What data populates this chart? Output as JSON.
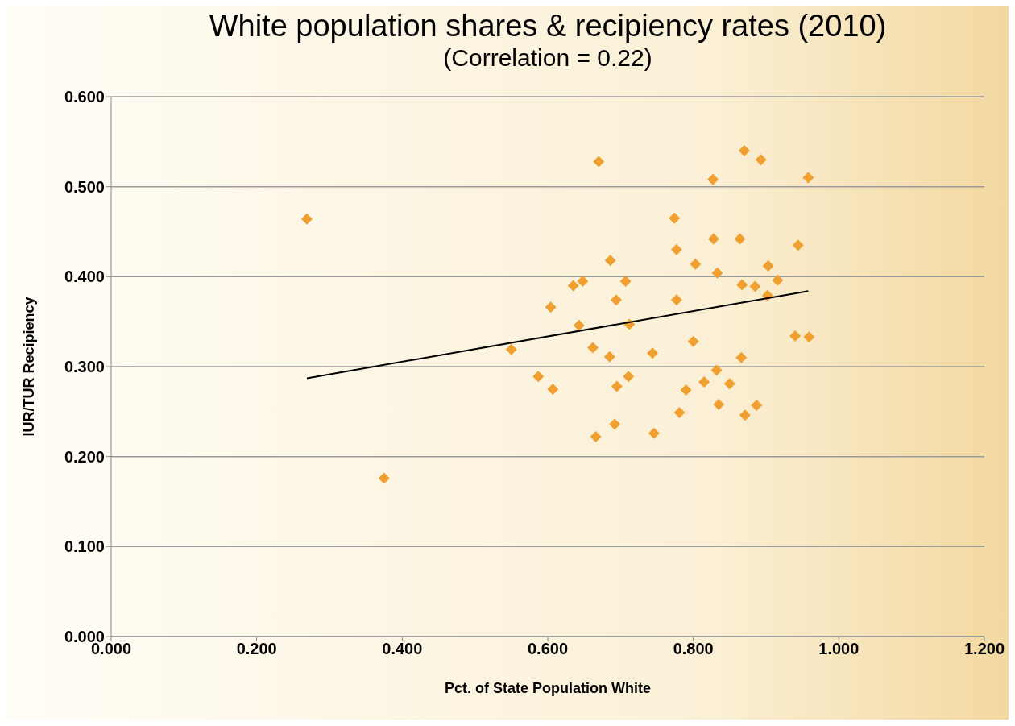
{
  "chart_data": {
    "type": "scatter",
    "title": "White population shares & recipiency rates  (2010)",
    "subtitle": "(Correlation = 0.22)",
    "xlabel": "Pct. of State Population White",
    "ylabel": "IUR/TUR Recipiency",
    "xlim": [
      0,
      1.2
    ],
    "xticks": [
      {
        "value": 0,
        "label": "0.000"
      },
      {
        "value": 0.2,
        "label": "0.200"
      },
      {
        "value": 0.4,
        "label": "0.400"
      },
      {
        "value": 0.6,
        "label": "0.600"
      },
      {
        "value": 0.8,
        "label": "0.800"
      },
      {
        "value": 1,
        "label": "1.000"
      },
      {
        "value": 1.2,
        "label": "1.200"
      }
    ],
    "ylim": [
      0,
      0.6
    ],
    "yticks": [
      {
        "value": 0,
        "label": "0.000"
      },
      {
        "value": 0.1,
        "label": "0.100"
      },
      {
        "value": 0.2,
        "label": "0.200"
      },
      {
        "value": 0.3,
        "label": "0.300"
      },
      {
        "value": 0.4,
        "label": "0.400"
      },
      {
        "value": 0.5,
        "label": "0.500"
      },
      {
        "value": 0.6,
        "label": "0.600"
      }
    ],
    "grid": "y",
    "legend": false,
    "marker": "diamond",
    "series": [
      {
        "color": "#f0a030",
        "x": [
          0.269,
          0.375,
          0.55,
          0.587,
          0.604,
          0.607,
          0.635,
          0.648,
          0.643,
          0.662,
          0.666,
          0.67,
          0.686,
          0.685,
          0.694,
          0.695,
          0.692,
          0.707,
          0.712,
          0.711,
          0.744,
          0.746,
          0.774,
          0.777,
          0.777,
          0.781,
          0.79,
          0.8,
          0.803,
          0.815,
          0.827,
          0.828,
          0.832,
          0.833,
          0.835,
          0.85,
          0.864,
          0.867,
          0.866,
          0.87,
          0.871,
          0.885,
          0.887,
          0.893,
          0.903,
          0.902,
          0.916,
          0.94,
          0.944,
          0.958,
          0.959
        ],
        "values": [
          0.464,
          0.176,
          0.319,
          0.289,
          0.366,
          0.275,
          0.39,
          0.395,
          0.346,
          0.321,
          0.222,
          0.528,
          0.418,
          0.311,
          0.374,
          0.278,
          0.236,
          0.395,
          0.347,
          0.289,
          0.315,
          0.226,
          0.465,
          0.43,
          0.374,
          0.249,
          0.274,
          0.328,
          0.414,
          0.283,
          0.508,
          0.442,
          0.296,
          0.404,
          0.258,
          0.281,
          0.442,
          0.391,
          0.31,
          0.54,
          0.246,
          0.389,
          0.257,
          0.53,
          0.412,
          0.379,
          0.396,
          0.334,
          0.435,
          0.51,
          0.333
        ]
      },
      {
        "type": "line",
        "marker": "none",
        "color": "#000000",
        "x": [
          0.269,
          0.958
        ],
        "values": [
          0.287,
          0.384
        ]
      }
    ]
  }
}
